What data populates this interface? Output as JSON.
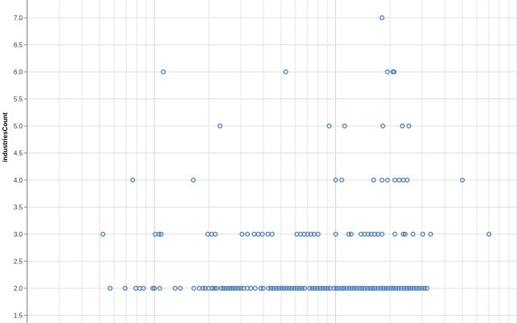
{
  "chart_data": {
    "type": "scatter",
    "title": "",
    "xlabel": "",
    "ylabel": "industriesCount",
    "x_scale": "log",
    "ylim": [
      1.5,
      7.0
    ],
    "y_ticks": [
      "1.5",
      "2.0",
      "2.5",
      "3.0",
      "3.5",
      "4.0",
      "4.5",
      "5.0",
      "5.5",
      "6.0",
      "6.5",
      "7.0"
    ],
    "grid": true,
    "marker": {
      "shape": "open-circle",
      "color": "#4c78a8"
    },
    "points": [
      {
        "x": 5.2,
        "y": 3.0
      },
      {
        "x": 7.6,
        "y": 4.0
      },
      {
        "x": 11.2,
        "y": 6.0
      },
      {
        "x": 23,
        "y": 5.0
      },
      {
        "x": 16.4,
        "y": 4.0
      },
      {
        "x": 53,
        "y": 6.0
      },
      {
        "x": 92,
        "y": 5.0
      },
      {
        "x": 112,
        "y": 5.0
      },
      {
        "x": 180,
        "y": 7.0
      },
      {
        "x": 193,
        "y": 6.0
      },
      {
        "x": 207,
        "y": 6.0
      },
      {
        "x": 210,
        "y": 6.0
      },
      {
        "x": 182,
        "y": 5.0
      },
      {
        "x": 233,
        "y": 5.0
      },
      {
        "x": 253,
        "y": 5.0
      },
      {
        "x": 100,
        "y": 4.0
      },
      {
        "x": 108,
        "y": 4.0
      },
      {
        "x": 162,
        "y": 4.0
      },
      {
        "x": 180,
        "y": 4.0
      },
      {
        "x": 193,
        "y": 4.0
      },
      {
        "x": 212,
        "y": 4.0
      },
      {
        "x": 224,
        "y": 4.0
      },
      {
        "x": 236,
        "y": 4.0
      },
      {
        "x": 248,
        "y": 4.0
      },
      {
        "x": 500,
        "y": 4.0
      },
      {
        "x": 10.1,
        "y": 3.0
      },
      {
        "x": 10.6,
        "y": 3.0
      },
      {
        "x": 10.9,
        "y": 3.0
      },
      {
        "x": 19.7,
        "y": 3.0
      },
      {
        "x": 20.7,
        "y": 3.0
      },
      {
        "x": 21.7,
        "y": 3.0
      },
      {
        "x": 30.4,
        "y": 3.0
      },
      {
        "x": 32.6,
        "y": 3.0
      },
      {
        "x": 35.5,
        "y": 3.0
      },
      {
        "x": 37.4,
        "y": 3.0
      },
      {
        "x": 39.4,
        "y": 3.0
      },
      {
        "x": 42.3,
        "y": 3.0
      },
      {
        "x": 44.6,
        "y": 3.0
      },
      {
        "x": 61,
        "y": 3.0
      },
      {
        "x": 64,
        "y": 3.0
      },
      {
        "x": 67,
        "y": 3.0
      },
      {
        "x": 70,
        "y": 3.0
      },
      {
        "x": 73,
        "y": 3.0
      },
      {
        "x": 76,
        "y": 3.0
      },
      {
        "x": 80,
        "y": 3.0
      },
      {
        "x": 100,
        "y": 3.0
      },
      {
        "x": 118,
        "y": 3.0
      },
      {
        "x": 122,
        "y": 3.0
      },
      {
        "x": 138,
        "y": 3.0
      },
      {
        "x": 144,
        "y": 3.0
      },
      {
        "x": 151,
        "y": 3.0
      },
      {
        "x": 157,
        "y": 3.0
      },
      {
        "x": 164,
        "y": 3.0
      },
      {
        "x": 171,
        "y": 3.0
      },
      {
        "x": 180,
        "y": 3.0
      },
      {
        "x": 212,
        "y": 3.0
      },
      {
        "x": 236,
        "y": 3.0
      },
      {
        "x": 242,
        "y": 3.0
      },
      {
        "x": 267,
        "y": 3.0
      },
      {
        "x": 302,
        "y": 3.0
      },
      {
        "x": 334,
        "y": 3.0
      },
      {
        "x": 700,
        "y": 3.0
      },
      {
        "x": 5.7,
        "y": 2.0
      },
      {
        "x": 6.9,
        "y": 2.0
      },
      {
        "x": 7.9,
        "y": 2.0
      },
      {
        "x": 8.3,
        "y": 2.0
      },
      {
        "x": 8.7,
        "y": 2.0
      },
      {
        "x": 9.8,
        "y": 2.0
      },
      {
        "x": 10.0,
        "y": 2.0
      },
      {
        "x": 10.7,
        "y": 2.0
      },
      {
        "x": 13.0,
        "y": 2.0
      },
      {
        "x": 13.9,
        "y": 2.0
      },
      {
        "x": 16.5,
        "y": 2.0
      },
      {
        "x": 17.7,
        "y": 2.0
      },
      {
        "x": 18.5,
        "y": 2.0
      },
      {
        "x": 19.1,
        "y": 2.0
      },
      {
        "x": 19.9,
        "y": 2.0
      },
      {
        "x": 20.8,
        "y": 2.0
      },
      {
        "x": 21.4,
        "y": 2.0
      },
      {
        "x": 22.0,
        "y": 2.0
      },
      {
        "x": 23.3,
        "y": 2.0
      },
      {
        "x": 24.0,
        "y": 2.0
      },
      {
        "x": 24.8,
        "y": 2.0
      },
      {
        "x": 25.6,
        "y": 2.0
      },
      {
        "x": 26.4,
        "y": 2.0
      },
      {
        "x": 27.2,
        "y": 2.0
      },
      {
        "x": 28.1,
        "y": 2.0
      },
      {
        "x": 29.0,
        "y": 2.0
      },
      {
        "x": 30.0,
        "y": 2.0
      },
      {
        "x": 31.0,
        "y": 2.0
      },
      {
        "x": 32.5,
        "y": 2.0
      },
      {
        "x": 34.0,
        "y": 2.0
      },
      {
        "x": 36.0,
        "y": 2.0
      },
      {
        "x": 38.6,
        "y": 2.0
      },
      {
        "x": 39.8,
        "y": 2.0
      },
      {
        "x": 42.6,
        "y": 2.0
      },
      {
        "x": 44.0,
        "y": 2.0
      },
      {
        "x": 45.5,
        "y": 2.0
      },
      {
        "x": 47.0,
        "y": 2.0
      },
      {
        "x": 48.6,
        "y": 2.0
      },
      {
        "x": 50.2,
        "y": 2.0
      },
      {
        "x": 51.9,
        "y": 2.0
      },
      {
        "x": 53.6,
        "y": 2.0
      },
      {
        "x": 55.4,
        "y": 2.0
      },
      {
        "x": 57.2,
        "y": 2.0
      },
      {
        "x": 59.1,
        "y": 2.0
      },
      {
        "x": 61.1,
        "y": 2.0
      },
      {
        "x": 63.1,
        "y": 2.0
      },
      {
        "x": 65.2,
        "y": 2.0
      },
      {
        "x": 67.4,
        "y": 2.0
      },
      {
        "x": 71.9,
        "y": 2.0
      },
      {
        "x": 74.3,
        "y": 2.0
      },
      {
        "x": 76.7,
        "y": 2.0
      },
      {
        "x": 79.3,
        "y": 2.0
      },
      {
        "x": 82.0,
        "y": 2.0
      },
      {
        "x": 84.7,
        "y": 2.0
      },
      {
        "x": 87.5,
        "y": 2.0
      },
      {
        "x": 90.4,
        "y": 2.0
      },
      {
        "x": 93.4,
        "y": 2.0
      },
      {
        "x": 97.7,
        "y": 2.0
      },
      {
        "x": 101,
        "y": 2.0
      },
      {
        "x": 104,
        "y": 2.0
      },
      {
        "x": 108,
        "y": 2.0
      },
      {
        "x": 111,
        "y": 2.0
      },
      {
        "x": 115,
        "y": 2.0
      },
      {
        "x": 119,
        "y": 2.0
      },
      {
        "x": 123,
        "y": 2.0
      },
      {
        "x": 127,
        "y": 2.0
      },
      {
        "x": 131,
        "y": 2.0
      },
      {
        "x": 136,
        "y": 2.0
      },
      {
        "x": 140,
        "y": 2.0
      },
      {
        "x": 145,
        "y": 2.0
      },
      {
        "x": 150,
        "y": 2.0
      },
      {
        "x": 155,
        "y": 2.0
      },
      {
        "x": 160,
        "y": 2.0
      },
      {
        "x": 165,
        "y": 2.0
      },
      {
        "x": 171,
        "y": 2.0
      },
      {
        "x": 177,
        "y": 2.0
      },
      {
        "x": 183,
        "y": 2.0
      },
      {
        "x": 189,
        "y": 2.0
      },
      {
        "x": 195,
        "y": 2.0
      },
      {
        "x": 202,
        "y": 2.0
      },
      {
        "x": 208,
        "y": 2.0
      },
      {
        "x": 215,
        "y": 2.0
      },
      {
        "x": 222,
        "y": 2.0
      },
      {
        "x": 230,
        "y": 2.0
      },
      {
        "x": 238,
        "y": 2.0
      },
      {
        "x": 246,
        "y": 2.0
      },
      {
        "x": 254,
        "y": 2.0
      },
      {
        "x": 262,
        "y": 2.0
      },
      {
        "x": 271,
        "y": 2.0
      },
      {
        "x": 280,
        "y": 2.0
      },
      {
        "x": 289,
        "y": 2.0
      },
      {
        "x": 299,
        "y": 2.0
      },
      {
        "x": 309,
        "y": 2.0
      },
      {
        "x": 319,
        "y": 2.0
      }
    ]
  }
}
